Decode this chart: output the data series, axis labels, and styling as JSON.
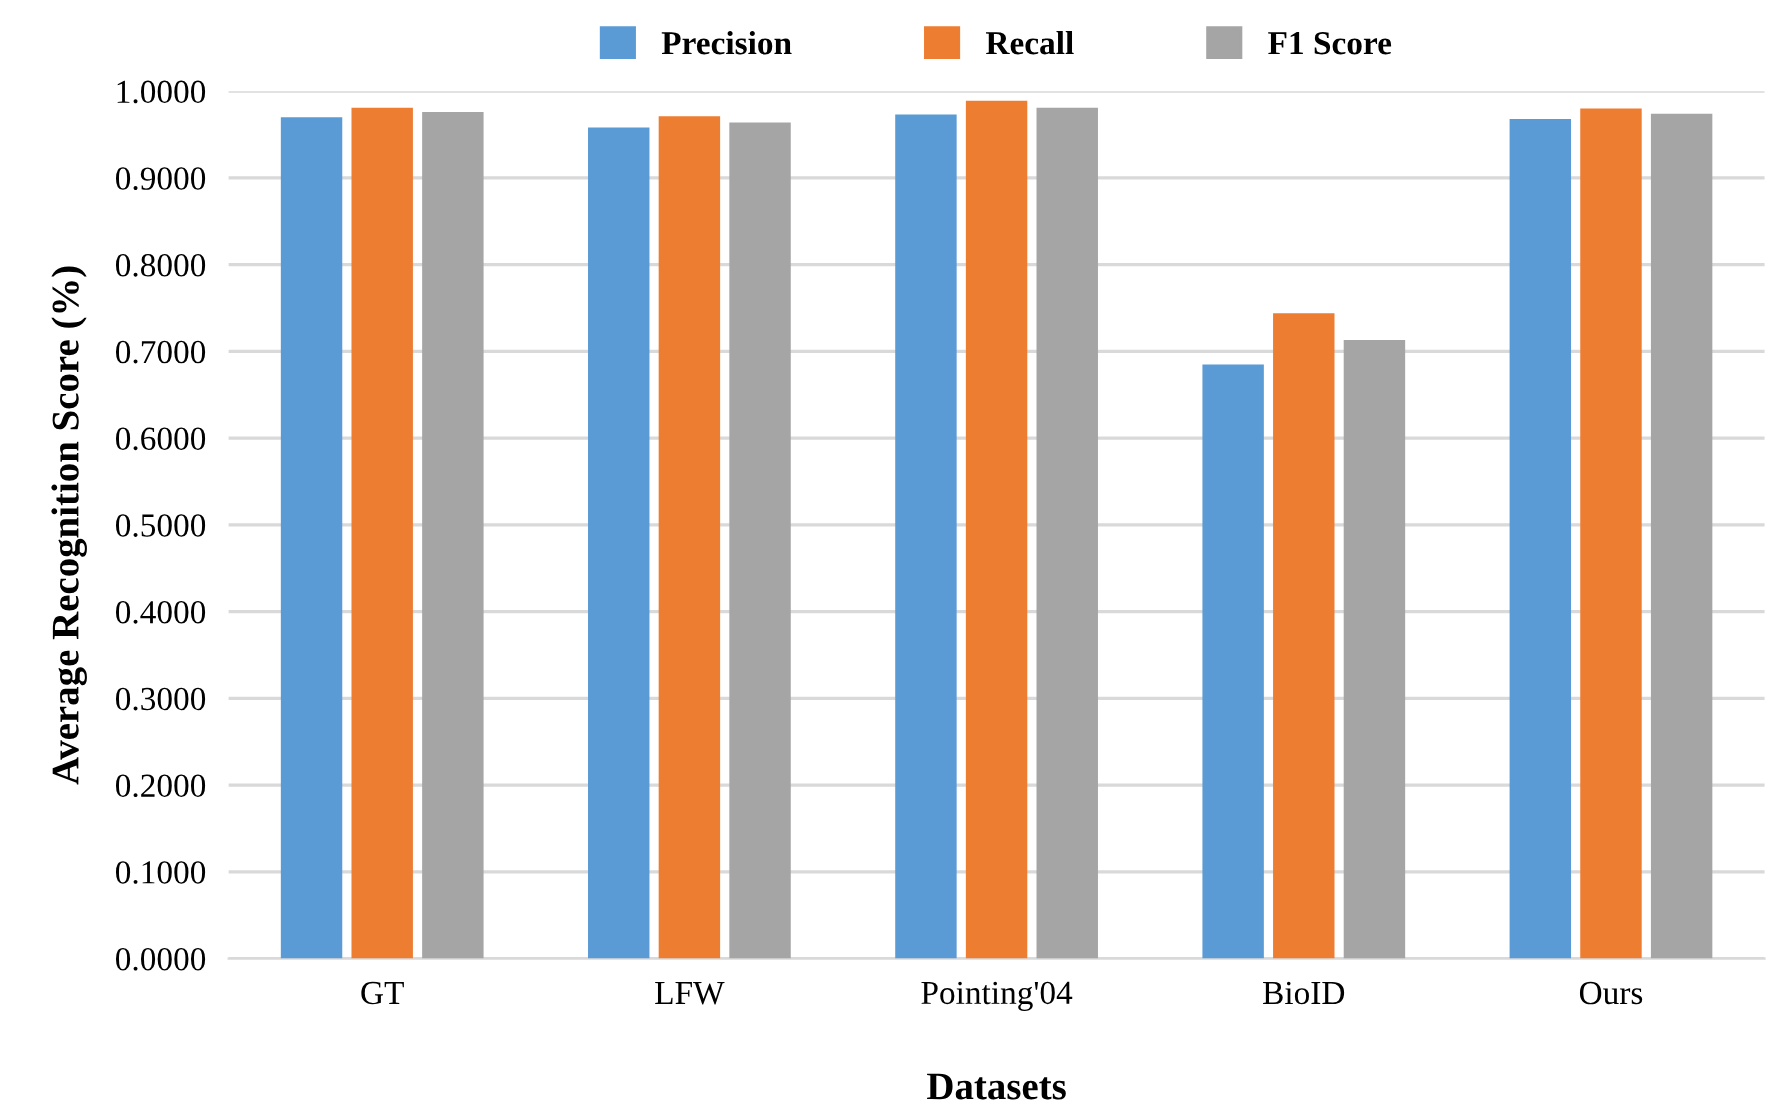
{
  "chart_data": {
    "type": "bar",
    "xlabel": "Datasets",
    "ylabel": "Average Recognition Score (%)",
    "categories": [
      "GT",
      "LFW",
      "Pointing'04",
      "BioID",
      "Ours"
    ],
    "series": [
      {
        "name": "Precision",
        "color": "#5b9bd5",
        "values": [
          0.97,
          0.958,
          0.973,
          0.685,
          0.968
        ]
      },
      {
        "name": "Recall",
        "color": "#ed7d31",
        "values": [
          0.981,
          0.971,
          0.989,
          0.744,
          0.98
        ]
      },
      {
        "name": "F1 Score",
        "color": "#a5a5a5",
        "values": [
          0.976,
          0.964,
          0.981,
          0.713,
          0.974
        ]
      }
    ],
    "ylim": [
      0,
      1
    ],
    "yticks": [
      {
        "value": 0,
        "label": "0.0000"
      },
      {
        "value": 0.1,
        "label": "0.1000"
      },
      {
        "value": 0.2,
        "label": "0.2000"
      },
      {
        "value": 0.3,
        "label": "0.3000"
      },
      {
        "value": 0.4,
        "label": "0.4000"
      },
      {
        "value": 0.5,
        "label": "0.5000"
      },
      {
        "value": 0.6,
        "label": "0.6000"
      },
      {
        "value": 0.7,
        "label": "0.7000"
      },
      {
        "value": 0.8,
        "label": "0.8000"
      },
      {
        "value": 0.9,
        "label": "0.9000"
      },
      {
        "value": 1,
        "label": "1.0000"
      }
    ],
    "grid": "y",
    "legend": "top"
  }
}
